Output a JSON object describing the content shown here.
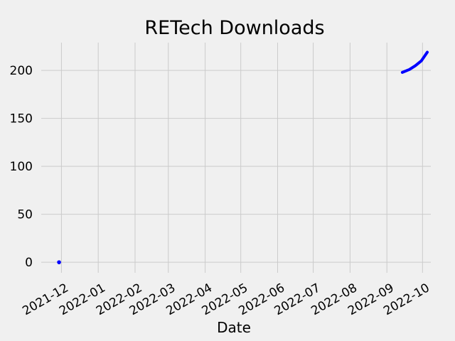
{
  "chart_data": {
    "type": "line",
    "title": "RETech Downloads",
    "xlabel": "Date",
    "ylabel": "",
    "x_axis": "date",
    "xlim": [
      "2021-11-14",
      "2022-10-08"
    ],
    "ylim": [
      -11,
      229
    ],
    "x_ticks": [
      "2021-12",
      "2022-01",
      "2022-02",
      "2022-03",
      "2022-04",
      "2022-05",
      "2022-06",
      "2022-07",
      "2022-08",
      "2022-09",
      "2022-10"
    ],
    "y_ticks": [
      0,
      50,
      100,
      150,
      200
    ],
    "grid": true,
    "legend": "none",
    "series": [
      {
        "color": "#0000ff",
        "x": [
          "2021-11-29",
          "2022-09-14",
          "2022-09-20",
          "2022-09-25",
          "2022-09-30",
          "2022-10-05"
        ],
        "y": [
          0,
          198,
          201,
          205,
          210,
          219
        ]
      }
    ]
  }
}
